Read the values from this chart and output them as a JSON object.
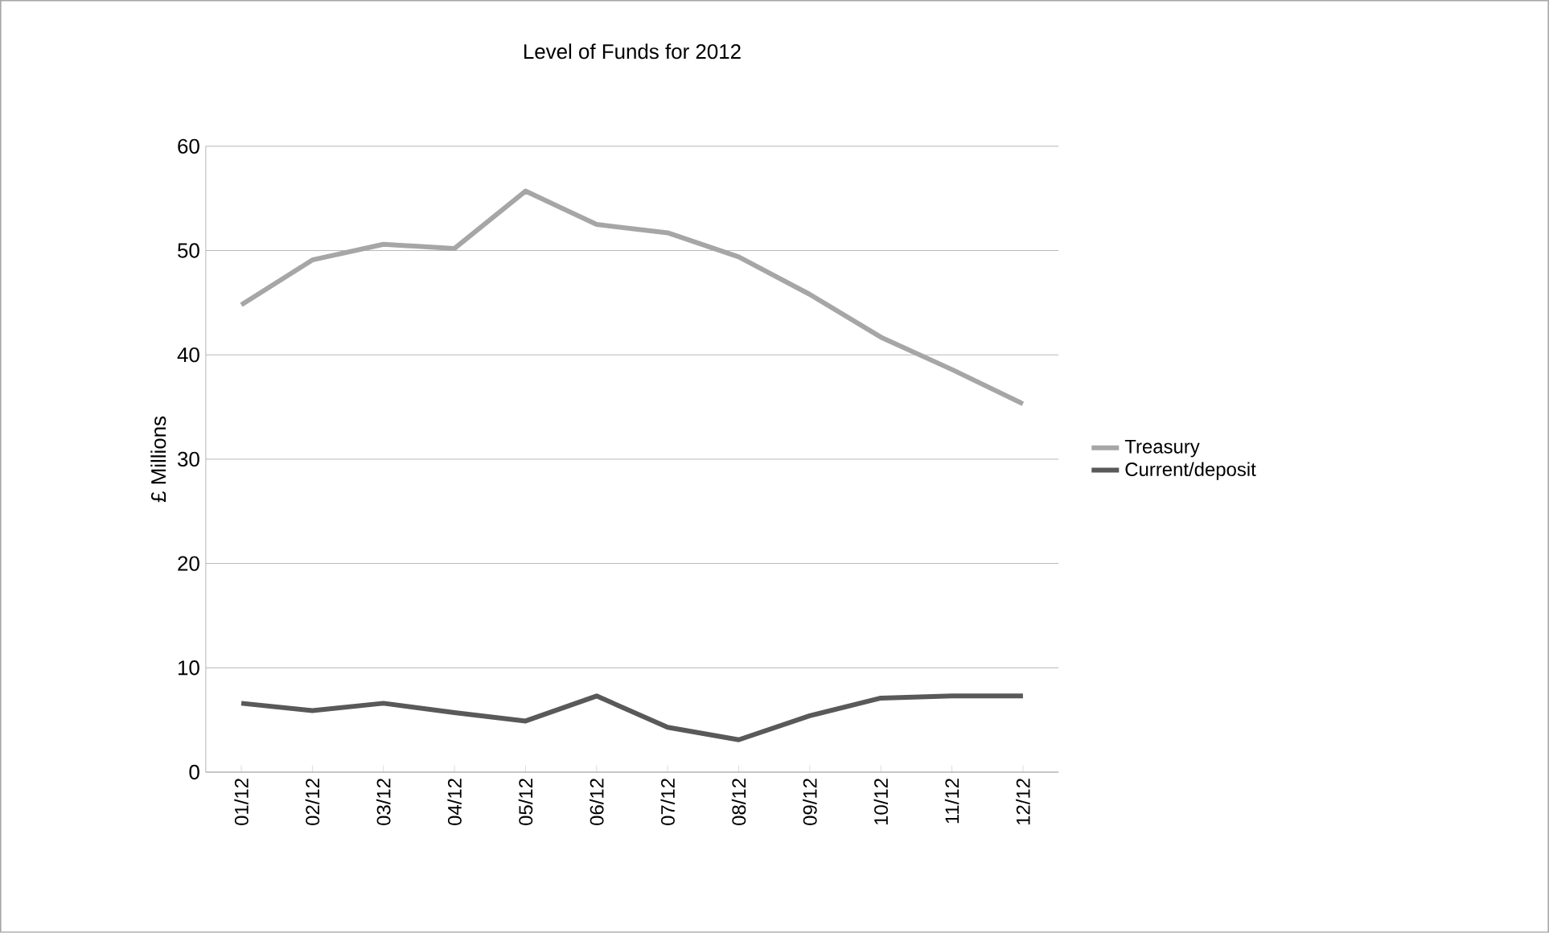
{
  "chart_data": {
    "type": "line",
    "title": "Level of Funds for 2012",
    "ylabel": "£ Millions",
    "categories": [
      "01/12",
      "02/12",
      "03/12",
      "04/12",
      "05/12",
      "06/12",
      "07/12",
      "08/12",
      "09/12",
      "10/12",
      "11/12",
      "12/12"
    ],
    "series": [
      {
        "name": "Treasury",
        "color": "#a6a6a6",
        "values": [
          44.8,
          49.1,
          50.6,
          50.2,
          55.7,
          52.5,
          51.7,
          49.4,
          45.8,
          41.7,
          38.6,
          35.3
        ]
      },
      {
        "name": "Current/deposit",
        "color": "#595959",
        "values": [
          6.6,
          5.9,
          6.6,
          5.7,
          4.9,
          7.3,
          4.3,
          3.1,
          5.4,
          7.1,
          7.3,
          7.3
        ]
      }
    ],
    "ylim": [
      0,
      60
    ],
    "yticks": [
      0,
      10,
      20,
      30,
      40,
      50,
      60
    ],
    "grid": "y",
    "legend": "right",
    "marker": "none",
    "line_style": "solid"
  }
}
